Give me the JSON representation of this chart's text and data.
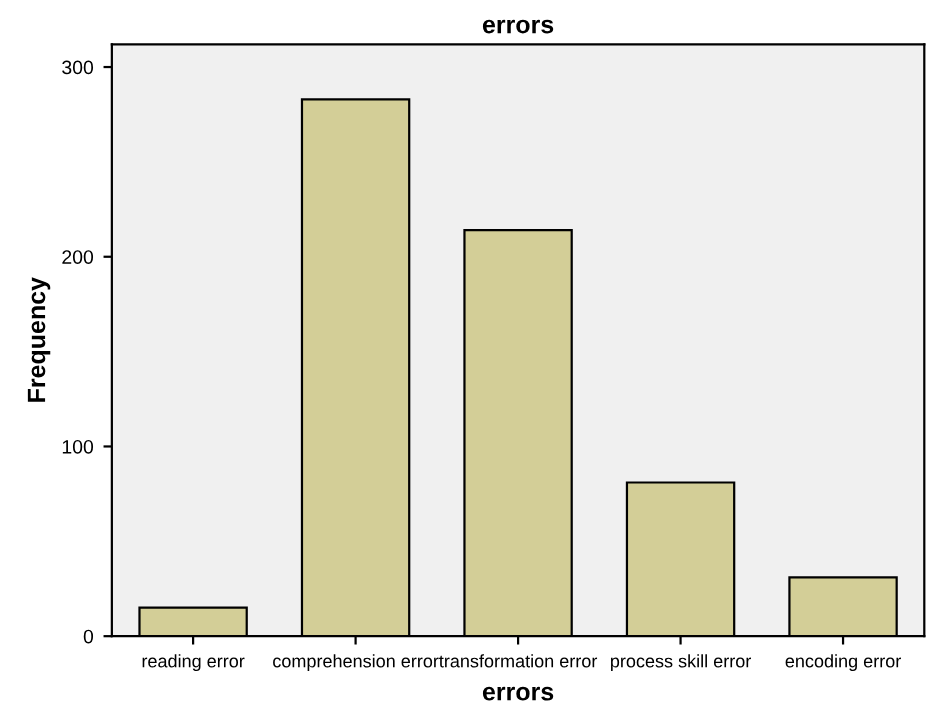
{
  "chart_data": {
    "type": "bar",
    "title": "errors",
    "xlabel": "errors",
    "ylabel": "Frequency",
    "categories": [
      "reading error",
      "comprehension error",
      "transformation error",
      "process skill error",
      "encoding error"
    ],
    "values": [
      15,
      283,
      214,
      81,
      31
    ],
    "color": "#d3ce97",
    "ylim": [
      0,
      312
    ],
    "yticks": [
      0,
      100,
      200,
      300
    ],
    "grid": false,
    "legend": false
  }
}
